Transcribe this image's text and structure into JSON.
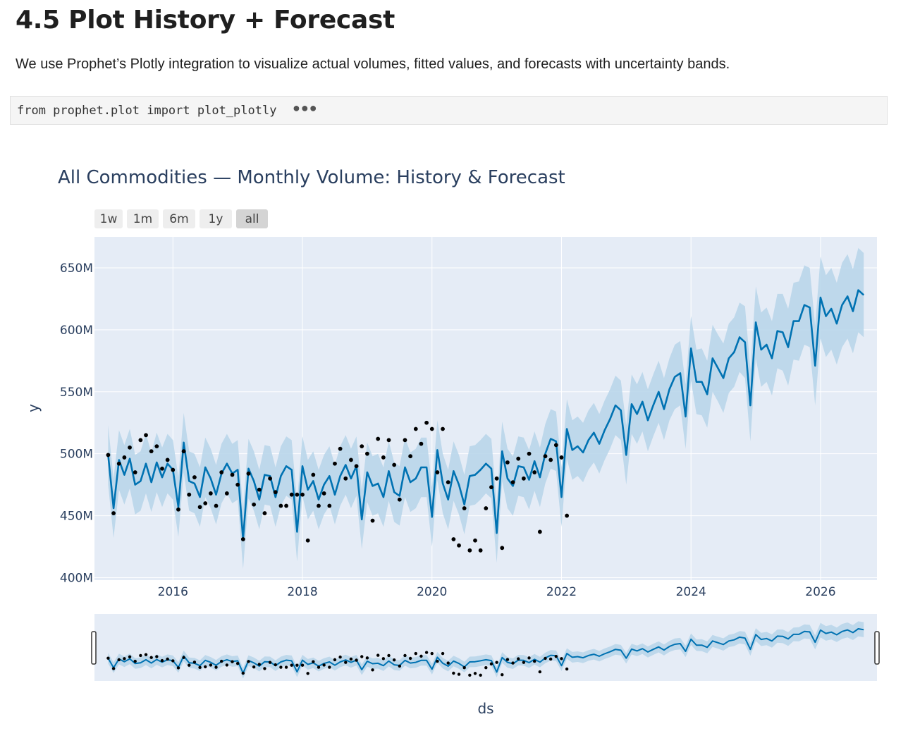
{
  "page": {
    "heading": "4.5 Plot History + Forecast",
    "intro": "We use Prophet’s Plotly integration to visualize actual volumes, fitted values, and forecasts with uncertainty bands.",
    "code": "from prophet.plot import plot_plotly",
    "code_collapsed_icon": "ellipsis-icon"
  },
  "colors": {
    "line": "#0072b2",
    "band": "#b9d6ea",
    "points": "#000000",
    "plot_bg": "#e5ecf6",
    "title": "#2a3f5f"
  },
  "range_selector": {
    "buttons": [
      "1w",
      "1m",
      "6m",
      "1y",
      "all"
    ],
    "active": "all"
  },
  "chart_data": {
    "type": "line",
    "title": "All Commodities — Monthly Volume: History & Forecast",
    "xlabel": "ds",
    "ylabel": "y",
    "x_ticks": [
      "2016",
      "2018",
      "2020",
      "2022",
      "2024",
      "2026"
    ],
    "y_ticks": [
      "400M",
      "450M",
      "500M",
      "550M",
      "600M",
      "650M"
    ],
    "xlim": [
      "2014-10-15",
      "2026-11-15"
    ],
    "ylim": [
      398,
      675
    ],
    "y_unit": "M",
    "grid": true,
    "legend": "none",
    "has_range_slider": true,
    "series": [
      {
        "kind": "forecast_line",
        "x_start": "2015-01",
        "step": "1 month",
        "values": [
          499,
          456,
          495,
          483,
          496,
          475,
          478,
          492,
          477,
          493,
          481,
          492,
          487,
          457,
          509,
          478,
          476,
          465,
          489,
          480,
          467,
          484,
          492,
          484,
          487,
          431,
          488,
          478,
          463,
          483,
          482,
          465,
          482,
          490,
          487,
          437,
          490,
          471,
          478,
          463,
          475,
          482,
          467,
          482,
          491,
          480,
          490,
          447,
          485,
          474,
          476,
          465,
          486,
          469,
          466,
          489,
          477,
          480,
          489,
          489,
          449,
          503,
          476,
          463,
          486,
          475,
          459,
          482,
          483,
          487,
          492,
          488,
          436,
          502,
          480,
          474,
          490,
          489,
          479,
          494,
          481,
          500,
          512,
          510,
          465,
          520,
          503,
          506,
          501,
          511,
          517,
          508,
          519,
          528,
          539,
          535,
          499,
          540,
          532,
          542,
          527,
          539,
          550,
          536,
          552,
          562,
          565,
          530,
          585,
          558,
          558,
          548,
          577,
          569,
          561,
          577,
          582,
          594,
          590,
          539,
          606,
          584,
          588,
          577,
          599,
          598,
          586,
          607,
          607,
          620,
          618,
          571,
          626,
          611,
          617,
          605,
          620,
          627,
          615,
          632,
          628
        ]
      },
      {
        "kind": "uncertainty_band_halfwidth",
        "values": [
          24,
          24,
          24,
          24,
          24,
          24,
          24,
          24,
          24,
          24,
          24,
          24,
          24,
          24,
          24,
          24,
          24,
          24,
          24,
          24,
          24,
          24,
          24,
          24,
          24,
          24,
          24,
          24,
          24,
          24,
          24,
          24,
          24,
          24,
          24,
          24,
          24,
          24,
          24,
          24,
          24,
          24,
          24,
          24,
          24,
          24,
          24,
          24,
          24,
          24,
          24,
          24,
          24,
          24,
          24,
          24,
          24,
          24,
          24,
          24,
          24,
          24,
          24,
          24,
          24,
          24,
          24,
          24,
          24,
          24,
          24,
          24,
          24,
          24,
          24,
          24,
          24,
          24,
          24,
          24,
          24,
          24,
          24,
          24,
          24,
          24,
          24,
          24,
          24,
          24,
          24,
          24,
          24,
          24,
          24,
          24,
          24,
          24,
          24,
          24,
          25,
          25,
          25,
          25,
          25,
          26,
          26,
          26,
          26,
          26,
          27,
          27,
          27,
          27,
          28,
          28,
          28,
          28,
          29,
          29,
          29,
          30,
          30,
          30,
          30,
          31,
          31,
          31,
          32,
          32,
          32,
          32,
          33,
          33,
          33,
          33,
          34,
          34,
          34,
          34,
          34
        ]
      },
      {
        "kind": "actual_points",
        "x_start": "2015-01",
        "step": "1 month",
        "values": [
          499,
          452,
          492,
          497,
          505,
          485,
          511,
          515,
          502,
          506,
          488,
          495,
          487,
          455,
          502,
          467,
          481,
          457,
          460,
          468,
          458,
          485,
          468,
          483,
          475,
          431,
          484,
          459,
          471,
          452,
          480,
          469,
          458,
          458,
          467,
          467,
          467,
          430,
          483,
          458,
          468,
          458,
          492,
          504,
          480,
          495,
          490,
          506,
          500,
          446,
          512,
          497,
          511,
          491,
          463,
          511,
          498,
          520,
          508,
          525,
          520,
          485,
          520,
          477,
          431,
          426,
          456,
          422,
          430,
          422,
          456,
          473,
          480,
          424,
          493,
          477,
          496,
          480,
          500,
          485,
          437,
          498,
          495,
          507,
          497,
          450
        ]
      }
    ]
  }
}
